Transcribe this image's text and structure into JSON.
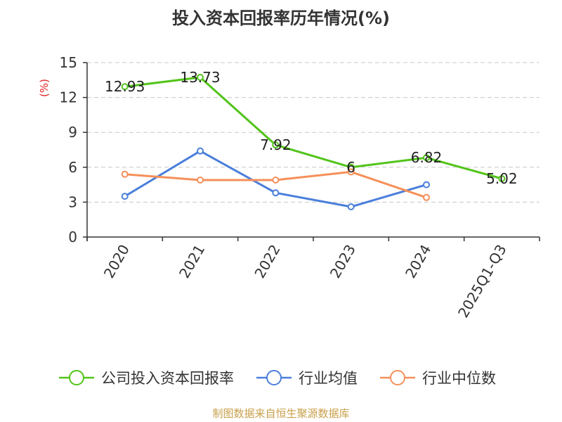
{
  "chart_data": {
    "type": "line",
    "title": "投入资本回报率历年情况(%)",
    "ylabel": "(%)",
    "categories": [
      "2020",
      "2021",
      "2022",
      "2023",
      "2024",
      "2025Q1-Q3"
    ],
    "ylim": [
      0,
      15
    ],
    "yticks": [
      0,
      3,
      6,
      9,
      12,
      15
    ],
    "grid": true,
    "legend_position": "bottom",
    "series": [
      {
        "name": "公司投入资本回报率",
        "color": "#52c41a",
        "values": [
          12.93,
          13.73,
          7.92,
          6,
          6.82,
          5.02
        ],
        "labels": [
          "12.93",
          "13.73",
          "7.92",
          "6",
          "6.82",
          "5.02"
        ]
      },
      {
        "name": "行业均值",
        "color": "#4a7fdb",
        "values": [
          3.5,
          7.4,
          3.8,
          2.6,
          4.5,
          null
        ]
      },
      {
        "name": "行业中位数",
        "color": "#f5905a",
        "values": [
          5.4,
          4.9,
          4.9,
          5.6,
          3.4,
          null
        ]
      }
    ]
  },
  "source": "制图数据来自恒生聚源数据库"
}
